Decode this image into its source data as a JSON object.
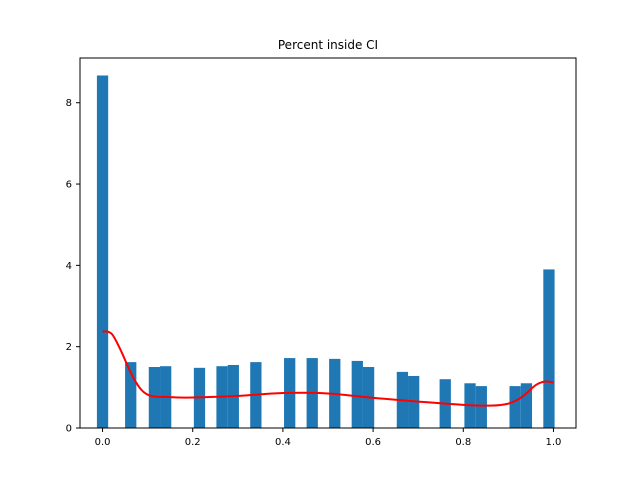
{
  "chart_data": {
    "type": "bar",
    "title": "Percent inside CI",
    "xlabel": "",
    "ylabel": "",
    "xlim": [
      -0.05,
      1.05
    ],
    "ylim": [
      0,
      9.1
    ],
    "xticks": [
      0.0,
      0.2,
      0.4,
      0.6,
      0.8,
      1.0
    ],
    "xtick_labels": [
      "0.0",
      "0.2",
      "0.4",
      "0.6",
      "0.8",
      "1.0"
    ],
    "yticks": [
      0,
      2,
      4,
      6,
      8
    ],
    "ytick_labels": [
      "0",
      "2",
      "4",
      "6",
      "8"
    ],
    "bar_width": 0.025,
    "bar_color": "#1f77b4",
    "bars": [
      {
        "x": 0.0,
        "value": 8.67
      },
      {
        "x": 0.0625,
        "value": 1.62
      },
      {
        "x": 0.115,
        "value": 1.5
      },
      {
        "x": 0.14,
        "value": 1.52
      },
      {
        "x": 0.215,
        "value": 1.48
      },
      {
        "x": 0.265,
        "value": 1.52
      },
      {
        "x": 0.29,
        "value": 1.55
      },
      {
        "x": 0.34,
        "value": 1.62
      },
      {
        "x": 0.415,
        "value": 1.72
      },
      {
        "x": 0.465,
        "value": 1.72
      },
      {
        "x": 0.515,
        "value": 1.7
      },
      {
        "x": 0.565,
        "value": 1.65
      },
      {
        "x": 0.59,
        "value": 1.5
      },
      {
        "x": 0.665,
        "value": 1.38
      },
      {
        "x": 0.69,
        "value": 1.28
      },
      {
        "x": 0.76,
        "value": 1.2
      },
      {
        "x": 0.815,
        "value": 1.1
      },
      {
        "x": 0.84,
        "value": 1.03
      },
      {
        "x": 0.915,
        "value": 1.03
      },
      {
        "x": 0.94,
        "value": 1.1
      },
      {
        "x": 0.99,
        "value": 3.9
      }
    ],
    "kde_color": "#ff0000",
    "kde_line": {
      "x": [
        0.0,
        0.02,
        0.04,
        0.07,
        0.1,
        0.15,
        0.2,
        0.3,
        0.4,
        0.5,
        0.6,
        0.7,
        0.8,
        0.86,
        0.9,
        0.93,
        0.96,
        0.98,
        1.0
      ],
      "y": [
        2.38,
        2.32,
        1.92,
        1.2,
        0.82,
        0.76,
        0.75,
        0.79,
        0.86,
        0.85,
        0.74,
        0.65,
        0.57,
        0.55,
        0.6,
        0.76,
        1.05,
        1.14,
        1.12
      ]
    }
  }
}
